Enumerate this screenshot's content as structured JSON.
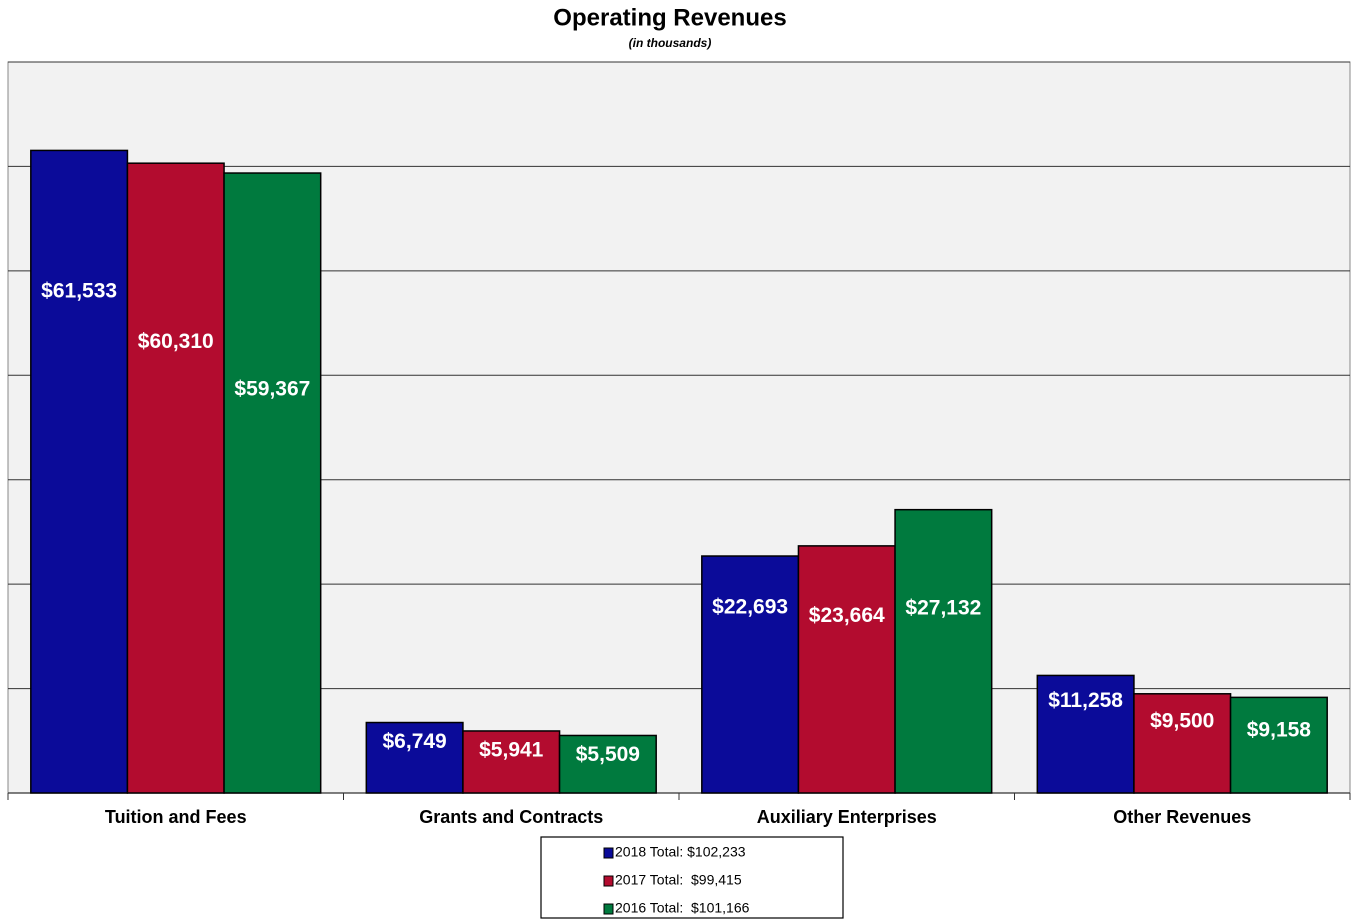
{
  "chart_data": {
    "type": "bar",
    "title": "Operating Revenues",
    "subtitle": "(in thousands)",
    "categories": [
      "Tuition and Fees",
      "Grants and Contracts",
      "Auxiliary Enterprises",
      "Other Revenues"
    ],
    "series": [
      {
        "name": "2018 Total: $102,233",
        "color": "#0b0b99",
        "values": [
          61533,
          6749,
          22693,
          11258
        ],
        "value_labels": [
          "$61,533",
          "$6,749",
          "$22,693",
          "$11,258"
        ]
      },
      {
        "name": "2017 Total:  $99,415",
        "color": "#b30c2f",
        "values": [
          60310,
          5941,
          23664,
          9500
        ],
        "value_labels": [
          "$60,310",
          "$5,941",
          "$23,664",
          "$9,500"
        ]
      },
      {
        "name": "2016 Total:  $101,166",
        "color": "#007a3e",
        "values": [
          59367,
          5509,
          27132,
          9158
        ],
        "value_labels": [
          "$59,367",
          "$5,509",
          "$27,132",
          "$9,158"
        ]
      }
    ],
    "ylim": [
      0,
      70000
    ],
    "yticks": [
      0,
      10000,
      20000,
      30000,
      40000,
      50000,
      60000,
      70000
    ],
    "grid": true
  }
}
